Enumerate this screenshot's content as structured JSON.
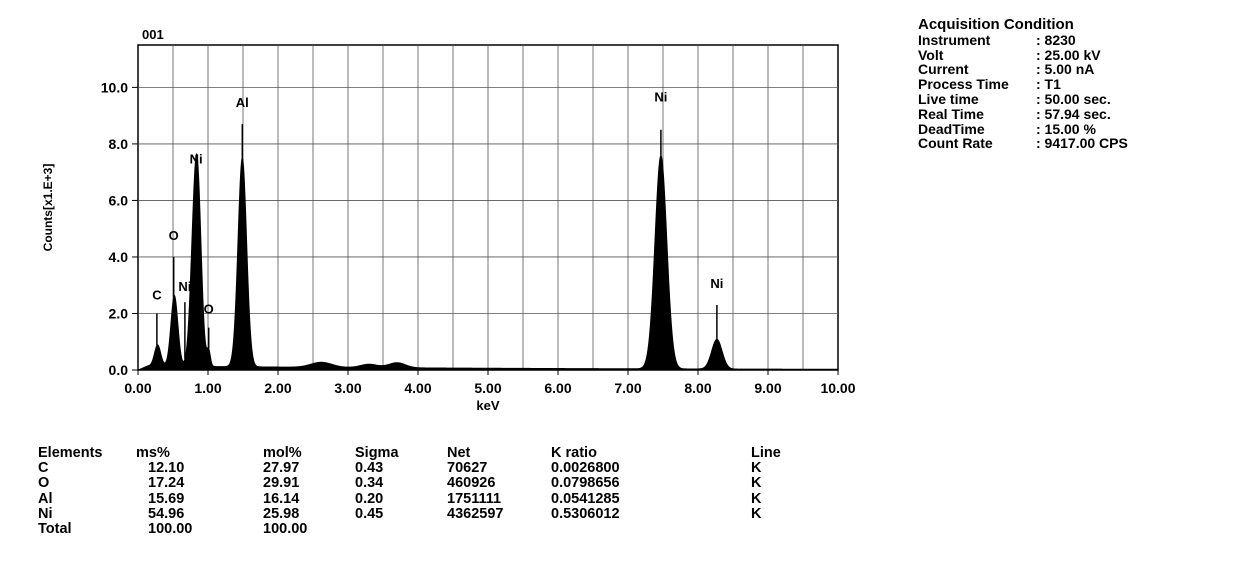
{
  "chart_data": {
    "type": "line",
    "title": "001",
    "xlabel": "keV",
    "ylabel": "Counts[x1.E+3]",
    "xlim": [
      0,
      10
    ],
    "ylim": [
      0,
      11.5
    ],
    "grid": true,
    "x_ticks": [
      {
        "value": 0,
        "label": "0.00"
      },
      {
        "value": 1,
        "label": "1.00"
      },
      {
        "value": 2,
        "label": "2.00"
      },
      {
        "value": 3,
        "label": "3.00"
      },
      {
        "value": 4,
        "label": "4.00"
      },
      {
        "value": 5,
        "label": "5.00"
      },
      {
        "value": 6,
        "label": "6.00"
      },
      {
        "value": 7,
        "label": "7.00"
      },
      {
        "value": 8,
        "label": "8.00"
      },
      {
        "value": 9,
        "label": "9.00"
      },
      {
        "value": 10,
        "label": "10.00"
      }
    ],
    "y_ticks": [
      {
        "value": 0,
        "label": "0.0"
      },
      {
        "value": 2,
        "label": "2.0"
      },
      {
        "value": 4,
        "label": "4.0"
      },
      {
        "value": 6,
        "label": "6.0"
      },
      {
        "value": 8,
        "label": "8.0"
      },
      {
        "value": 10,
        "label": "10.0"
      }
    ],
    "peaks": [
      {
        "energy": 0.28,
        "height": 0.75,
        "width": 0.045
      },
      {
        "energy": 0.52,
        "height": 2.5,
        "width": 0.05
      },
      {
        "energy": 0.78,
        "height": 2.3,
        "width": 0.05
      },
      {
        "energy": 0.85,
        "height": 6.5,
        "width": 0.055
      },
      {
        "energy": 1.01,
        "height": 0.55,
        "width": 0.025
      },
      {
        "energy": 1.49,
        "height": 7.4,
        "width": 0.062
      },
      {
        "energy": 2.62,
        "height": 0.18,
        "width": 0.15
      },
      {
        "energy": 3.3,
        "height": 0.12,
        "width": 0.12
      },
      {
        "energy": 3.7,
        "height": 0.18,
        "width": 0.12
      },
      {
        "energy": 7.47,
        "height": 7.55,
        "width": 0.085
      },
      {
        "energy": 8.27,
        "height": 1.05,
        "width": 0.075
      }
    ],
    "background": 0.15,
    "peak_labels": [
      {
        "text": "C",
        "energy": 0.27,
        "y": 2.5,
        "marker_top": 2.0
      },
      {
        "text": "O",
        "energy": 0.51,
        "y": 4.6,
        "marker_top": 4.0
      },
      {
        "text": "Ni",
        "energy": 0.67,
        "y": 2.8,
        "marker_top": 2.4
      },
      {
        "text": "Ni",
        "energy": 0.83,
        "y": 7.3,
        "marker_top": 6.7
      },
      {
        "text": "O",
        "energy": 1.01,
        "y": 2.0,
        "marker_top": 1.5
      },
      {
        "text": "Al",
        "energy": 1.49,
        "y": 9.3,
        "marker_top": 8.7
      },
      {
        "text": "Ni",
        "energy": 7.47,
        "y": 9.5,
        "marker_top": 8.5
      },
      {
        "text": "Ni",
        "energy": 8.27,
        "y": 2.9,
        "marker_top": 2.3
      }
    ]
  },
  "acquisition": {
    "title": "Acquisition Condition",
    "rows": [
      {
        "key": "Instrument",
        "value": ": 8230"
      },
      {
        "key": "Volt",
        "value": ": 25.00 kV"
      },
      {
        "key": "Current",
        "value": ": 5.00 nA"
      },
      {
        "key": "Process Time",
        "value": ": T1"
      },
      {
        "key": "Live time",
        "value": ": 50.00 sec."
      },
      {
        "key": "Real Time",
        "value": ": 57.94 sec."
      },
      {
        "key": "DeadTime",
        "value": ": 15.00 %"
      },
      {
        "key": "Count Rate",
        "value": ": 9417.00 CPS"
      }
    ]
  },
  "results": {
    "headers": [
      "Elements",
      "ms%",
      "mol%",
      "Sigma",
      "Net",
      "K ratio",
      "Line"
    ],
    "rows": [
      [
        "C",
        "12.10",
        "27.97",
        "0.43",
        "70627",
        "0.0026800",
        "K"
      ],
      [
        "O",
        "17.24",
        "29.91",
        "0.34",
        "460926",
        "0.0798656",
        "K"
      ],
      [
        "Al",
        "15.69",
        "16.14",
        "0.20",
        "1751111",
        "0.0541285",
        "K"
      ],
      [
        "Ni",
        "54.96",
        "25.98",
        "0.45",
        "4362597",
        "0.5306012",
        "K"
      ]
    ],
    "total": [
      "Total",
      "100.00",
      "100.00",
      "",
      "",
      "",
      ""
    ]
  }
}
